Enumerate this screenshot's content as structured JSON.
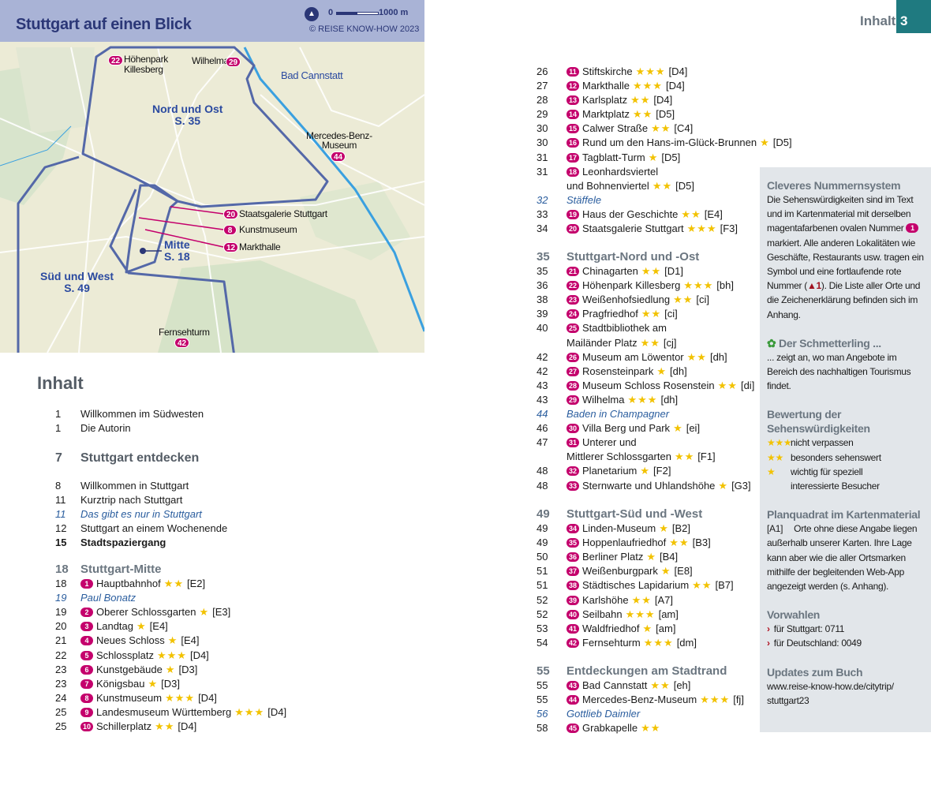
{
  "map": {
    "title": "Stuttgart auf einen Blick",
    "scale_start": "0",
    "scale_end": "1000 m",
    "copyright": "© REISE KNOW-HOW 2023",
    "districts": {
      "nord": "Nord und Ost",
      "nord_page": "S. 35",
      "mitte": "Mitte",
      "mitte_page": "S. 18",
      "sued": "Süd und West",
      "sued_page": "S. 49"
    },
    "places": {
      "hoehenpark": "Höhenpark",
      "killesberg": "Killesberg",
      "wilhelma": "Wilhelma",
      "bad_cannstatt": "Bad Cannstatt",
      "mercedes1": "Mercedes-Benz-",
      "mercedes2": "Museum",
      "staatsgalerie": "Staatsgalerie Stuttgart",
      "kunstmuseum": "Kunstmuseum",
      "markthalle": "Markthalle",
      "fernsehturm": "Fernsehturm"
    },
    "badges": {
      "hoehenpark": "22",
      "wilhelma": "29",
      "mercedes": "44",
      "staatsgalerie": "20",
      "kunstmuseum": "8",
      "markthalle": "12",
      "fernsehturm": "42"
    },
    "colors": {
      "header": "#a9b3d6",
      "outline": "#5468a8",
      "marker": "#c4006c"
    }
  },
  "page_header": {
    "title": "Inhalt",
    "page_number": "3"
  },
  "heading": "Inhalt",
  "colors": {
    "badge": "#c4006c",
    "star": "#f2c200",
    "italic_link": "#2a5d9e",
    "section_heading": "#6b7680",
    "sidebar_bg": "#e2e6ea",
    "page_tab": "#1f7a80"
  },
  "left_groups": [
    [
      {
        "p": "1",
        "t": "Willkommen im Südwesten"
      },
      {
        "p": "1",
        "t": "Die Autorin"
      }
    ],
    [
      {
        "p": "7",
        "t": "Stuttgart entdecken",
        "type": "big"
      }
    ],
    [
      {
        "p": "8",
        "t": "Willkommen in Stuttgart"
      },
      {
        "p": "11",
        "t": "Kurztrip nach Stuttgart"
      },
      {
        "p": "11",
        "t": "Das gibt es nur in Stuttgart",
        "type": "it"
      },
      {
        "p": "12",
        "t": "Stuttgart an einem Wochenende"
      },
      {
        "p": "15",
        "t": "Stadtspaziergang",
        "type": "bold"
      }
    ],
    [
      {
        "p": "18",
        "t": "Stuttgart-Mitte",
        "type": "hd"
      },
      {
        "p": "18",
        "b": "1",
        "t": "Hauptbahnhof",
        "s": "★★",
        "g": "[E2]"
      },
      {
        "p": "19",
        "t": "Paul Bonatz",
        "type": "it"
      },
      {
        "p": "19",
        "b": "2",
        "t": "Oberer Schlossgarten",
        "s": "★",
        "g": "[E3]"
      },
      {
        "p": "20",
        "b": "3",
        "t": "Landtag",
        "s": "★",
        "g": "[E4]"
      },
      {
        "p": "21",
        "b": "4",
        "t": "Neues Schloss",
        "s": "★",
        "g": "[E4]"
      },
      {
        "p": "22",
        "b": "5",
        "t": "Schlossplatz",
        "s": "★★★",
        "g": "[D4]"
      },
      {
        "p": "23",
        "b": "6",
        "t": "Kunstgebäude",
        "s": "★",
        "g": "[D3]"
      },
      {
        "p": "23",
        "b": "7",
        "t": "Königsbau",
        "s": "★",
        "g": "[D3]"
      },
      {
        "p": "24",
        "b": "8",
        "t": "Kunstmuseum",
        "s": "★★★",
        "g": "[D4]"
      },
      {
        "p": "25",
        "b": "9",
        "t": "Landesmuseum Württemberg",
        "s": "★★★",
        "g": "[D4]"
      },
      {
        "p": "25",
        "b": "10",
        "t": "Schillerplatz",
        "s": "★★",
        "g": "[D4]"
      }
    ]
  ],
  "mid_groups": [
    [
      {
        "p": "26",
        "b": "11",
        "t": "Stiftskirche",
        "s": "★★★",
        "g": "[D4]"
      },
      {
        "p": "27",
        "b": "12",
        "t": "Markthalle",
        "s": "★★★",
        "g": "[D4]"
      },
      {
        "p": "28",
        "b": "13",
        "t": "Karlsplatz",
        "s": "★★",
        "g": "[D4]"
      },
      {
        "p": "29",
        "b": "14",
        "t": "Marktplatz",
        "s": "★★",
        "g": "[D5]"
      },
      {
        "p": "30",
        "b": "15",
        "t": "Calwer Straße",
        "s": "★★",
        "g": "[C4]"
      },
      {
        "p": "30",
        "b": "16",
        "t": "Rund um den Hans-im-Glück-Brunnen",
        "s": "★",
        "g": "[D5]"
      },
      {
        "p": "31",
        "b": "17",
        "t": "Tagblatt-Turm",
        "s": "★",
        "g": "[D5]"
      },
      {
        "p": "31",
        "b": "18",
        "t": "Leonhardsviertel",
        "c": "und Bohnenviertel",
        "s": "★★",
        "g": "[D5]"
      },
      {
        "p": "32",
        "t": "Stäffele",
        "type": "it"
      },
      {
        "p": "33",
        "b": "19",
        "t": "Haus der Geschichte",
        "s": "★★",
        "g": "[E4]"
      },
      {
        "p": "34",
        "b": "20",
        "t": "Staatsgalerie Stuttgart",
        "s": "★★★",
        "g": "[F3]"
      }
    ],
    [
      {
        "p": "35",
        "t": "Stuttgart-Nord und -Ost",
        "type": "hd"
      },
      {
        "p": "35",
        "b": "21",
        "t": "Chinagarten",
        "s": "★★",
        "g": "[D1]"
      },
      {
        "p": "36",
        "b": "22",
        "t": "Höhenpark Killesberg",
        "s": "★★★",
        "g": "[bh]"
      },
      {
        "p": "38",
        "b": "23",
        "t": "Weißenhofsiedlung",
        "s": "★★",
        "g": "[ci]"
      },
      {
        "p": "39",
        "b": "24",
        "t": "Pragfriedhof",
        "s": "★★",
        "g": "[ci]"
      },
      {
        "p": "40",
        "b": "25",
        "t": "Stadtbibliothek am",
        "c": "Mailänder Platz",
        "s": "★★",
        "g": "[cj]"
      },
      {
        "p": "42",
        "b": "26",
        "t": "Museum am Löwentor",
        "s": "★★",
        "g": "[dh]"
      },
      {
        "p": "42",
        "b": "27",
        "t": "Rosensteinpark",
        "s": "★",
        "g": "[dh]"
      },
      {
        "p": "43",
        "b": "28",
        "t": "Museum Schloss Rosenstein",
        "s": "★★",
        "g": "[di]"
      },
      {
        "p": "43",
        "b": "29",
        "t": "Wilhelma",
        "s": "★★★",
        "g": "[dh]"
      },
      {
        "p": "44",
        "t": "Baden in Champagner",
        "type": "it"
      },
      {
        "p": "46",
        "b": "30",
        "t": "Villa Berg und Park",
        "s": "★",
        "g": "[ei]"
      },
      {
        "p": "47",
        "b": "31",
        "t": "Unterer und",
        "c": "Mittlerer Schlossgarten",
        "s": "★★",
        "g": "[F1]"
      },
      {
        "p": "48",
        "b": "32",
        "t": "Planetarium",
        "s": "★",
        "g": "[F2]"
      },
      {
        "p": "48",
        "b": "33",
        "t": "Sternwarte und Uhlandshöhe",
        "s": "★",
        "g": "[G3]"
      }
    ],
    [
      {
        "p": "49",
        "t": "Stuttgart-Süd und -West",
        "type": "hd"
      },
      {
        "p": "49",
        "b": "34",
        "t": "Linden-Museum",
        "s": "★",
        "g": "[B2]"
      },
      {
        "p": "49",
        "b": "35",
        "t": "Hoppenlaufriedhof",
        "s": "★★",
        "g": "[B3]"
      },
      {
        "p": "50",
        "b": "36",
        "t": "Berliner Platz",
        "s": "★",
        "g": "[B4]"
      },
      {
        "p": "51",
        "b": "37",
        "t": "Weißenburgpark",
        "s": "★",
        "g": "[E8]"
      },
      {
        "p": "51",
        "b": "38",
        "t": "Städtisches Lapidarium",
        "s": "★★",
        "g": "[B7]"
      },
      {
        "p": "52",
        "b": "39",
        "t": "Karlshöhe",
        "s": "★★",
        "g": "[A7]"
      },
      {
        "p": "52",
        "b": "40",
        "t": "Seilbahn",
        "s": "★★★",
        "g": "[am]"
      },
      {
        "p": "53",
        "b": "41",
        "t": "Waldfriedhof",
        "s": "★",
        "g": "[am]"
      },
      {
        "p": "54",
        "b": "42",
        "t": "Fernsehturm",
        "s": "★★★",
        "g": "[dm]"
      }
    ],
    [
      {
        "p": "55",
        "t": "Entdeckungen am Stadtrand",
        "type": "hd"
      },
      {
        "p": "55",
        "b": "43",
        "t": "Bad Cannstatt",
        "s": "★★",
        "g": "[eh]"
      },
      {
        "p": "55",
        "b": "44",
        "t": "Mercedes-Benz-Museum",
        "s": "★★★",
        "g": "[fj]"
      },
      {
        "p": "56",
        "t": "Gottlieb Daimler",
        "type": "it"
      },
      {
        "p": "58",
        "b": "45",
        "t": "Grabkapelle",
        "s": "★★"
      }
    ]
  ],
  "sidebar": {
    "numbering": {
      "title": "Cleveres Nummernsystem",
      "text1": "Die Sehenswürdigkeiten sind im Text und im Kartenmaterial mit derselben magentafarbenen ovalen Nummer",
      "badge": "1",
      "text2": "markiert. Alle anderen Lokalitäten wie Geschäfte, Restaurants usw. tragen ein Symbol und eine fortlaufende rote Nummer (",
      "symbol_number": "1",
      "text3": "). Die Liste aller Orte und die Zeichenerklärung befinden sich im Anhang."
    },
    "butterfly": {
      "title": "Der Schmetterling ...",
      "text": "... zeigt an, wo man Angebote im Bereich des nachhaltigen Tourismus findet."
    },
    "rating": {
      "title": "Bewertung der Sehenswürdigkeiten",
      "items": [
        {
          "stars": "★★★",
          "label": "nicht verpassen"
        },
        {
          "stars": "★★",
          "label": "besonders sehenswert"
        },
        {
          "stars": "★",
          "label": "wichtig für speziell interessierte Besucher"
        }
      ]
    },
    "grid": {
      "title": "Planquadrat im Kartenmaterial",
      "code": "[A1]",
      "text": "Orte ohne diese Angabe liegen außerhalb unserer Karten. Ihre Lage kann aber wie die aller Ortsmarken mithilfe der begleitenden Web-App angezeigt werden (s. Anhang)."
    },
    "dialing": {
      "title": "Vorwahlen",
      "items": [
        "für Stuttgart: 0711",
        "für Deutschland: 0049"
      ]
    },
    "updates": {
      "title": "Updates zum Buch",
      "url": "www.reise-know-how.de/citytrip/ stuttgart23"
    }
  }
}
